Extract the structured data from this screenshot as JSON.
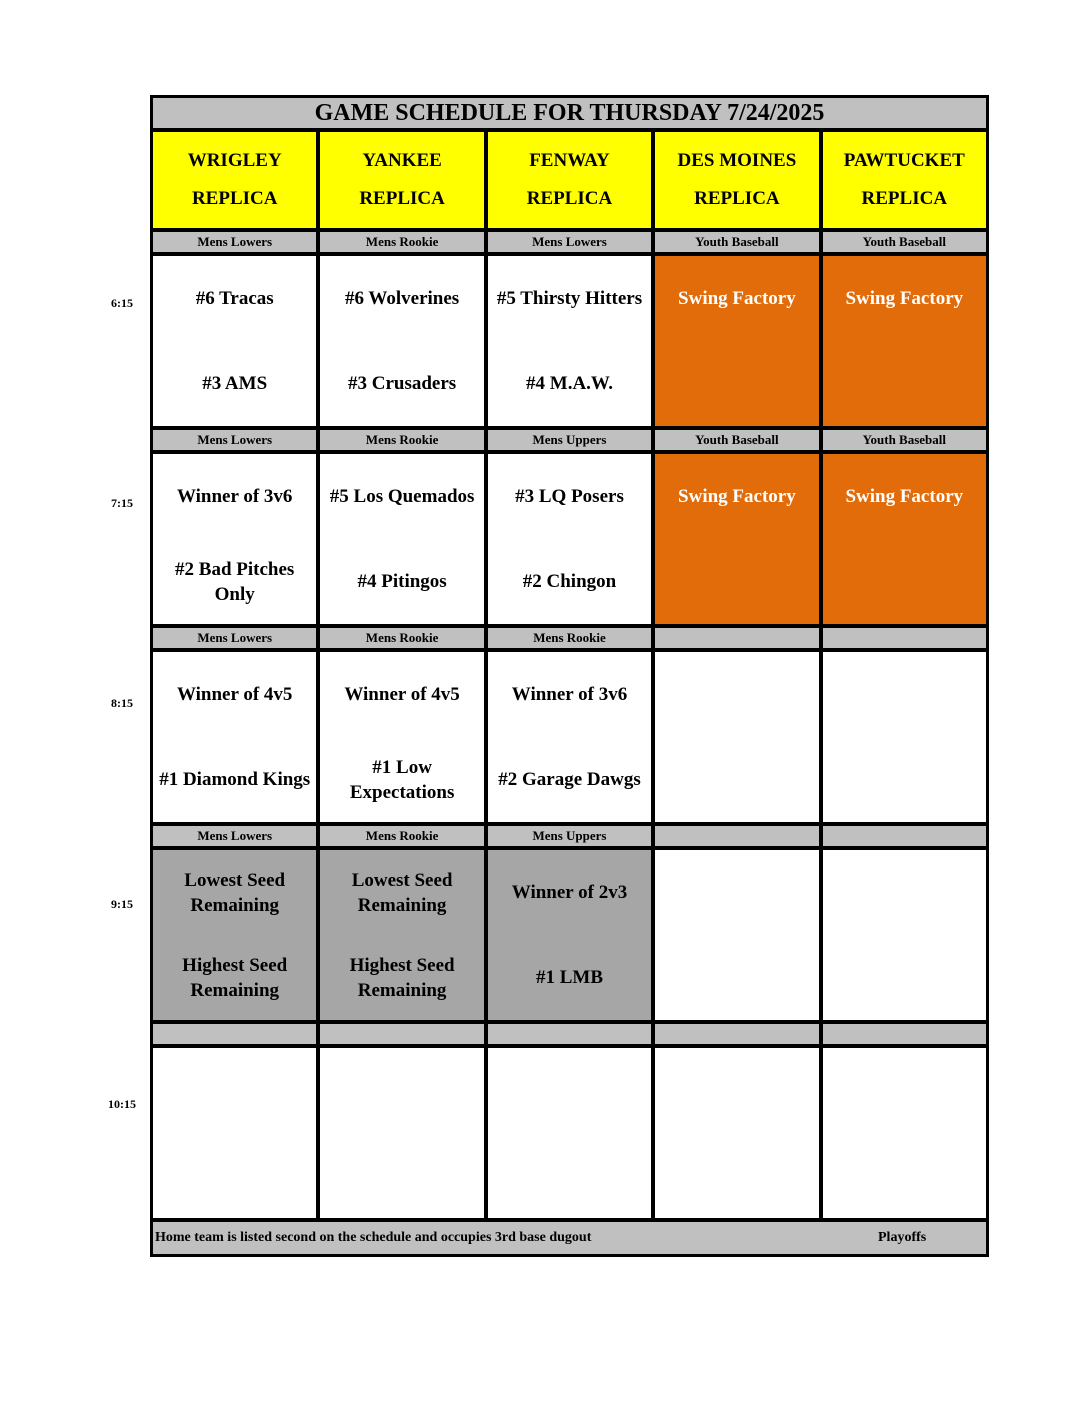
{
  "title": "GAME SCHEDULE FOR THURSDAY 7/24/2025",
  "fields": [
    {
      "line1": "WRIGLEY",
      "line2": "REPLICA"
    },
    {
      "line1": "YANKEE",
      "line2": "REPLICA"
    },
    {
      "line1": "FENWAY",
      "line2": "REPLICA"
    },
    {
      "line1": "DES MOINES",
      "line2": "REPLICA"
    },
    {
      "line1": "PAWTUCKET",
      "line2": "REPLICA"
    }
  ],
  "colors": {
    "header": "#ffff00",
    "label_row": "#c0c0c0",
    "swing_factory": "#e36c0a",
    "playoff_game": "#a6a6a6"
  },
  "slots": [
    {
      "time": "6:15",
      "labels": [
        "Mens Lowers",
        "Mens Rookie",
        "Mens Lowers",
        "Youth Baseball",
        "Youth Baseball"
      ],
      "games": [
        {
          "away": "#6 Tracas",
          "home": "#3 AMS",
          "fill": "white"
        },
        {
          "away": "#6 Wolverines",
          "home": "#3 Crusaders",
          "fill": "white"
        },
        {
          "away": "#5 Thirsty Hitters",
          "home": "#4 M.A.W.",
          "fill": "white"
        },
        {
          "away": "Swing Factory",
          "home": "",
          "fill": "orange"
        },
        {
          "away": "Swing Factory",
          "home": "",
          "fill": "orange"
        }
      ]
    },
    {
      "time": "7:15",
      "labels": [
        "Mens Lowers",
        "Mens Rookie",
        "Mens Uppers",
        "Youth Baseball",
        "Youth Baseball"
      ],
      "games": [
        {
          "away": "Winner of 3v6",
          "home": "#2 Bad Pitches Only",
          "fill": "white"
        },
        {
          "away": "#5 Los Quemados",
          "home": "#4 Pitingos",
          "fill": "white"
        },
        {
          "away": "#3 LQ Posers",
          "home": "#2 Chingon",
          "fill": "white"
        },
        {
          "away": "Swing Factory",
          "home": "",
          "fill": "orange"
        },
        {
          "away": "Swing Factory",
          "home": "",
          "fill": "orange"
        }
      ]
    },
    {
      "time": "8:15",
      "labels": [
        "Mens Lowers",
        "Mens Rookie",
        "Mens Rookie",
        "",
        ""
      ],
      "games": [
        {
          "away": "Winner of 4v5",
          "home": "#1 Diamond Kings",
          "fill": "white"
        },
        {
          "away": "Winner of 4v5",
          "home": "#1 Low Expectations",
          "fill": "white"
        },
        {
          "away": "Winner of 3v6",
          "home": "#2 Garage Dawgs",
          "fill": "white"
        },
        {
          "away": "",
          "home": "",
          "fill": "white"
        },
        {
          "away": "",
          "home": "",
          "fill": "white"
        }
      ]
    },
    {
      "time": "9:15",
      "labels": [
        "Mens Lowers",
        "Mens Rookie",
        "Mens Uppers",
        "",
        ""
      ],
      "games": [
        {
          "away": "Lowest Seed Remaining",
          "home": "Highest Seed Remaining",
          "fill": "gray"
        },
        {
          "away": "Lowest Seed Remaining",
          "home": "Highest Seed Remaining",
          "fill": "gray"
        },
        {
          "away": "Winner of 2v3",
          "home": "#1 LMB",
          "fill": "gray"
        },
        {
          "away": "",
          "home": "",
          "fill": "white"
        },
        {
          "away": "",
          "home": "",
          "fill": "white"
        }
      ]
    },
    {
      "time": "10:15",
      "labels": [
        "",
        "",
        "",
        "",
        ""
      ],
      "games": [
        {
          "away": "",
          "home": "",
          "fill": "white"
        },
        {
          "away": "",
          "home": "",
          "fill": "white"
        },
        {
          "away": "",
          "home": "",
          "fill": "white"
        },
        {
          "away": "",
          "home": "",
          "fill": "white"
        },
        {
          "away": "",
          "home": "",
          "fill": "white"
        }
      ]
    }
  ],
  "footer": {
    "note": "Home team is listed second on the schedule and occupies 3rd base dugout",
    "playoffs": "Playoffs"
  }
}
